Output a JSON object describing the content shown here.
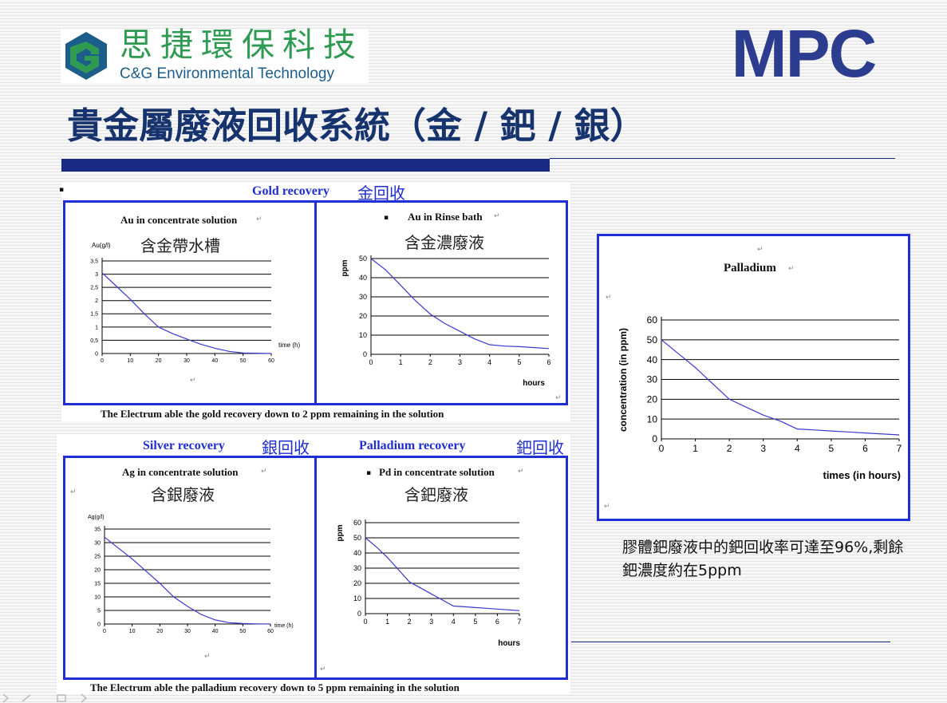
{
  "header": {
    "company_cn": "思捷環保科技",
    "company_en": "C&G Environmental Technology",
    "brand": "MPC",
    "title": "貴金屬廢液回收系統（金 / 鈀 / 銀）"
  },
  "colors": {
    "title": "#16336e",
    "accent_bar": "#1a2a82",
    "panel_border": "#1f2fd6",
    "logo_green": "#2e9a52",
    "logo_dark": "#1d5d8a",
    "mpc": "#2c3c8e",
    "line": "#3a3acf"
  },
  "gold_section": {
    "heading": "Gold recovery",
    "heading_cn": "金回收",
    "caption": "The Electrum able the gold recovery down to 2 ppm remaining in the solution"
  },
  "silver_section": {
    "heading": "Silver recovery",
    "heading_cn": "銀回收"
  },
  "palladium_section": {
    "heading": "Palladium recovery",
    "heading_cn": "鈀回收",
    "caption": "The Electrum able the palladium recovery down to 5 ppm remaining in the solution"
  },
  "note": "膠體鈀廢液中的鈀回收率可達至96%,剩餘鈀濃度約在5ppm",
  "marks": {
    "return": "↵",
    "bullet": "▪"
  },
  "chart_data": [
    {
      "id": "au_concentrate",
      "type": "line",
      "title": "Au in concentrate solution",
      "subtitle": "含金帶水槽",
      "ylabel": "Au(g/l)",
      "xlabel": "time (h)",
      "xlim": [
        0,
        60
      ],
      "ylim": [
        0,
        3.5
      ],
      "xticks": [
        "0",
        "10",
        "20",
        "30",
        "40",
        "50",
        "60"
      ],
      "yticks": [
        "0",
        "0,5",
        "1",
        "1,5",
        "2",
        "2,5",
        "3",
        "3,5"
      ],
      "grid": true,
      "series": [
        {
          "x": [
            0,
            5,
            10,
            15,
            20,
            25,
            30,
            35,
            40,
            45,
            50,
            60
          ],
          "y": [
            3.05,
            2.55,
            2.05,
            1.5,
            1.0,
            0.75,
            0.55,
            0.35,
            0.2,
            0.08,
            0.02,
            0.0
          ]
        }
      ]
    },
    {
      "id": "au_rinse",
      "type": "line",
      "title": "Au in Rinse bath",
      "subtitle": "含金濃廢液",
      "ylabel": "ppm",
      "xlabel": "hours",
      "xlim": [
        0,
        6
      ],
      "ylim": [
        0,
        50
      ],
      "xticks": [
        "0",
        "1",
        "2",
        "3",
        "4",
        "5",
        "6"
      ],
      "yticks": [
        "0",
        "10",
        "20",
        "30",
        "40",
        "50"
      ],
      "grid": true,
      "series": [
        {
          "x": [
            0,
            0.5,
            1,
            1.5,
            2,
            2.5,
            3,
            3.5,
            4,
            4.5,
            5,
            5.5,
            6
          ],
          "y": [
            50,
            44,
            36,
            28,
            21,
            16,
            12,
            8,
            5,
            4.3,
            4,
            3.5,
            3
          ]
        }
      ]
    },
    {
      "id": "ag_concentrate",
      "type": "line",
      "title": "Ag in concentrate solution",
      "subtitle": "含銀廢液",
      "ylabel": "Ag(g/l)",
      "xlabel": "time (h)",
      "xlim": [
        0,
        60
      ],
      "ylim": [
        0,
        35
      ],
      "xticks": [
        "0",
        "10",
        "20",
        "30",
        "40",
        "50",
        "60"
      ],
      "yticks": [
        "0",
        "5",
        "10",
        "15",
        "20",
        "25",
        "30",
        "35"
      ],
      "grid": true,
      "series": [
        {
          "x": [
            0,
            5,
            10,
            15,
            20,
            25,
            30,
            35,
            40,
            45,
            50,
            55,
            60
          ],
          "y": [
            32,
            28,
            24,
            19.5,
            15,
            10,
            6.5,
            3.5,
            1.5,
            0.5,
            0.2,
            0.05,
            0
          ]
        }
      ]
    },
    {
      "id": "pd_concentrate",
      "type": "line",
      "title": "Pd in concentrate solution",
      "subtitle": "含鈀廢液",
      "ylabel": "ppm",
      "xlabel": "hours",
      "xlim": [
        0,
        7
      ],
      "ylim": [
        0,
        60
      ],
      "xticks": [
        "0",
        "1",
        "2",
        "3",
        "4",
        "5",
        "6",
        "7"
      ],
      "yticks": [
        "0",
        "10",
        "20",
        "30",
        "40",
        "50",
        "60"
      ],
      "grid": true,
      "series": [
        {
          "x": [
            0,
            0.5,
            1,
            1.5,
            2,
            2.5,
            3,
            3.5,
            4,
            4.5,
            5,
            5.5,
            6,
            7
          ],
          "y": [
            50,
            44,
            37,
            29,
            21,
            17,
            13,
            9,
            5,
            4.5,
            4,
            3.5,
            3,
            2
          ]
        }
      ]
    },
    {
      "id": "palladium",
      "type": "line",
      "title": "Palladium",
      "ylabel": "concentration (in ppm)",
      "xlabel": "times (in hours)",
      "xlim": [
        0,
        7
      ],
      "ylim": [
        0,
        60
      ],
      "xticks": [
        "0",
        "1",
        "2",
        "3",
        "4",
        "5",
        "6",
        "7"
      ],
      "yticks": [
        "0",
        "10",
        "20",
        "30",
        "40",
        "50",
        "60"
      ],
      "grid": true,
      "series": [
        {
          "x": [
            0,
            0.5,
            1,
            1.5,
            2,
            2.5,
            3,
            3.5,
            4,
            4.5,
            5,
            5.5,
            6,
            7
          ],
          "y": [
            50,
            43,
            36,
            28,
            20,
            16,
            12,
            9,
            5,
            4.5,
            4,
            3.5,
            3,
            2
          ]
        }
      ]
    }
  ]
}
